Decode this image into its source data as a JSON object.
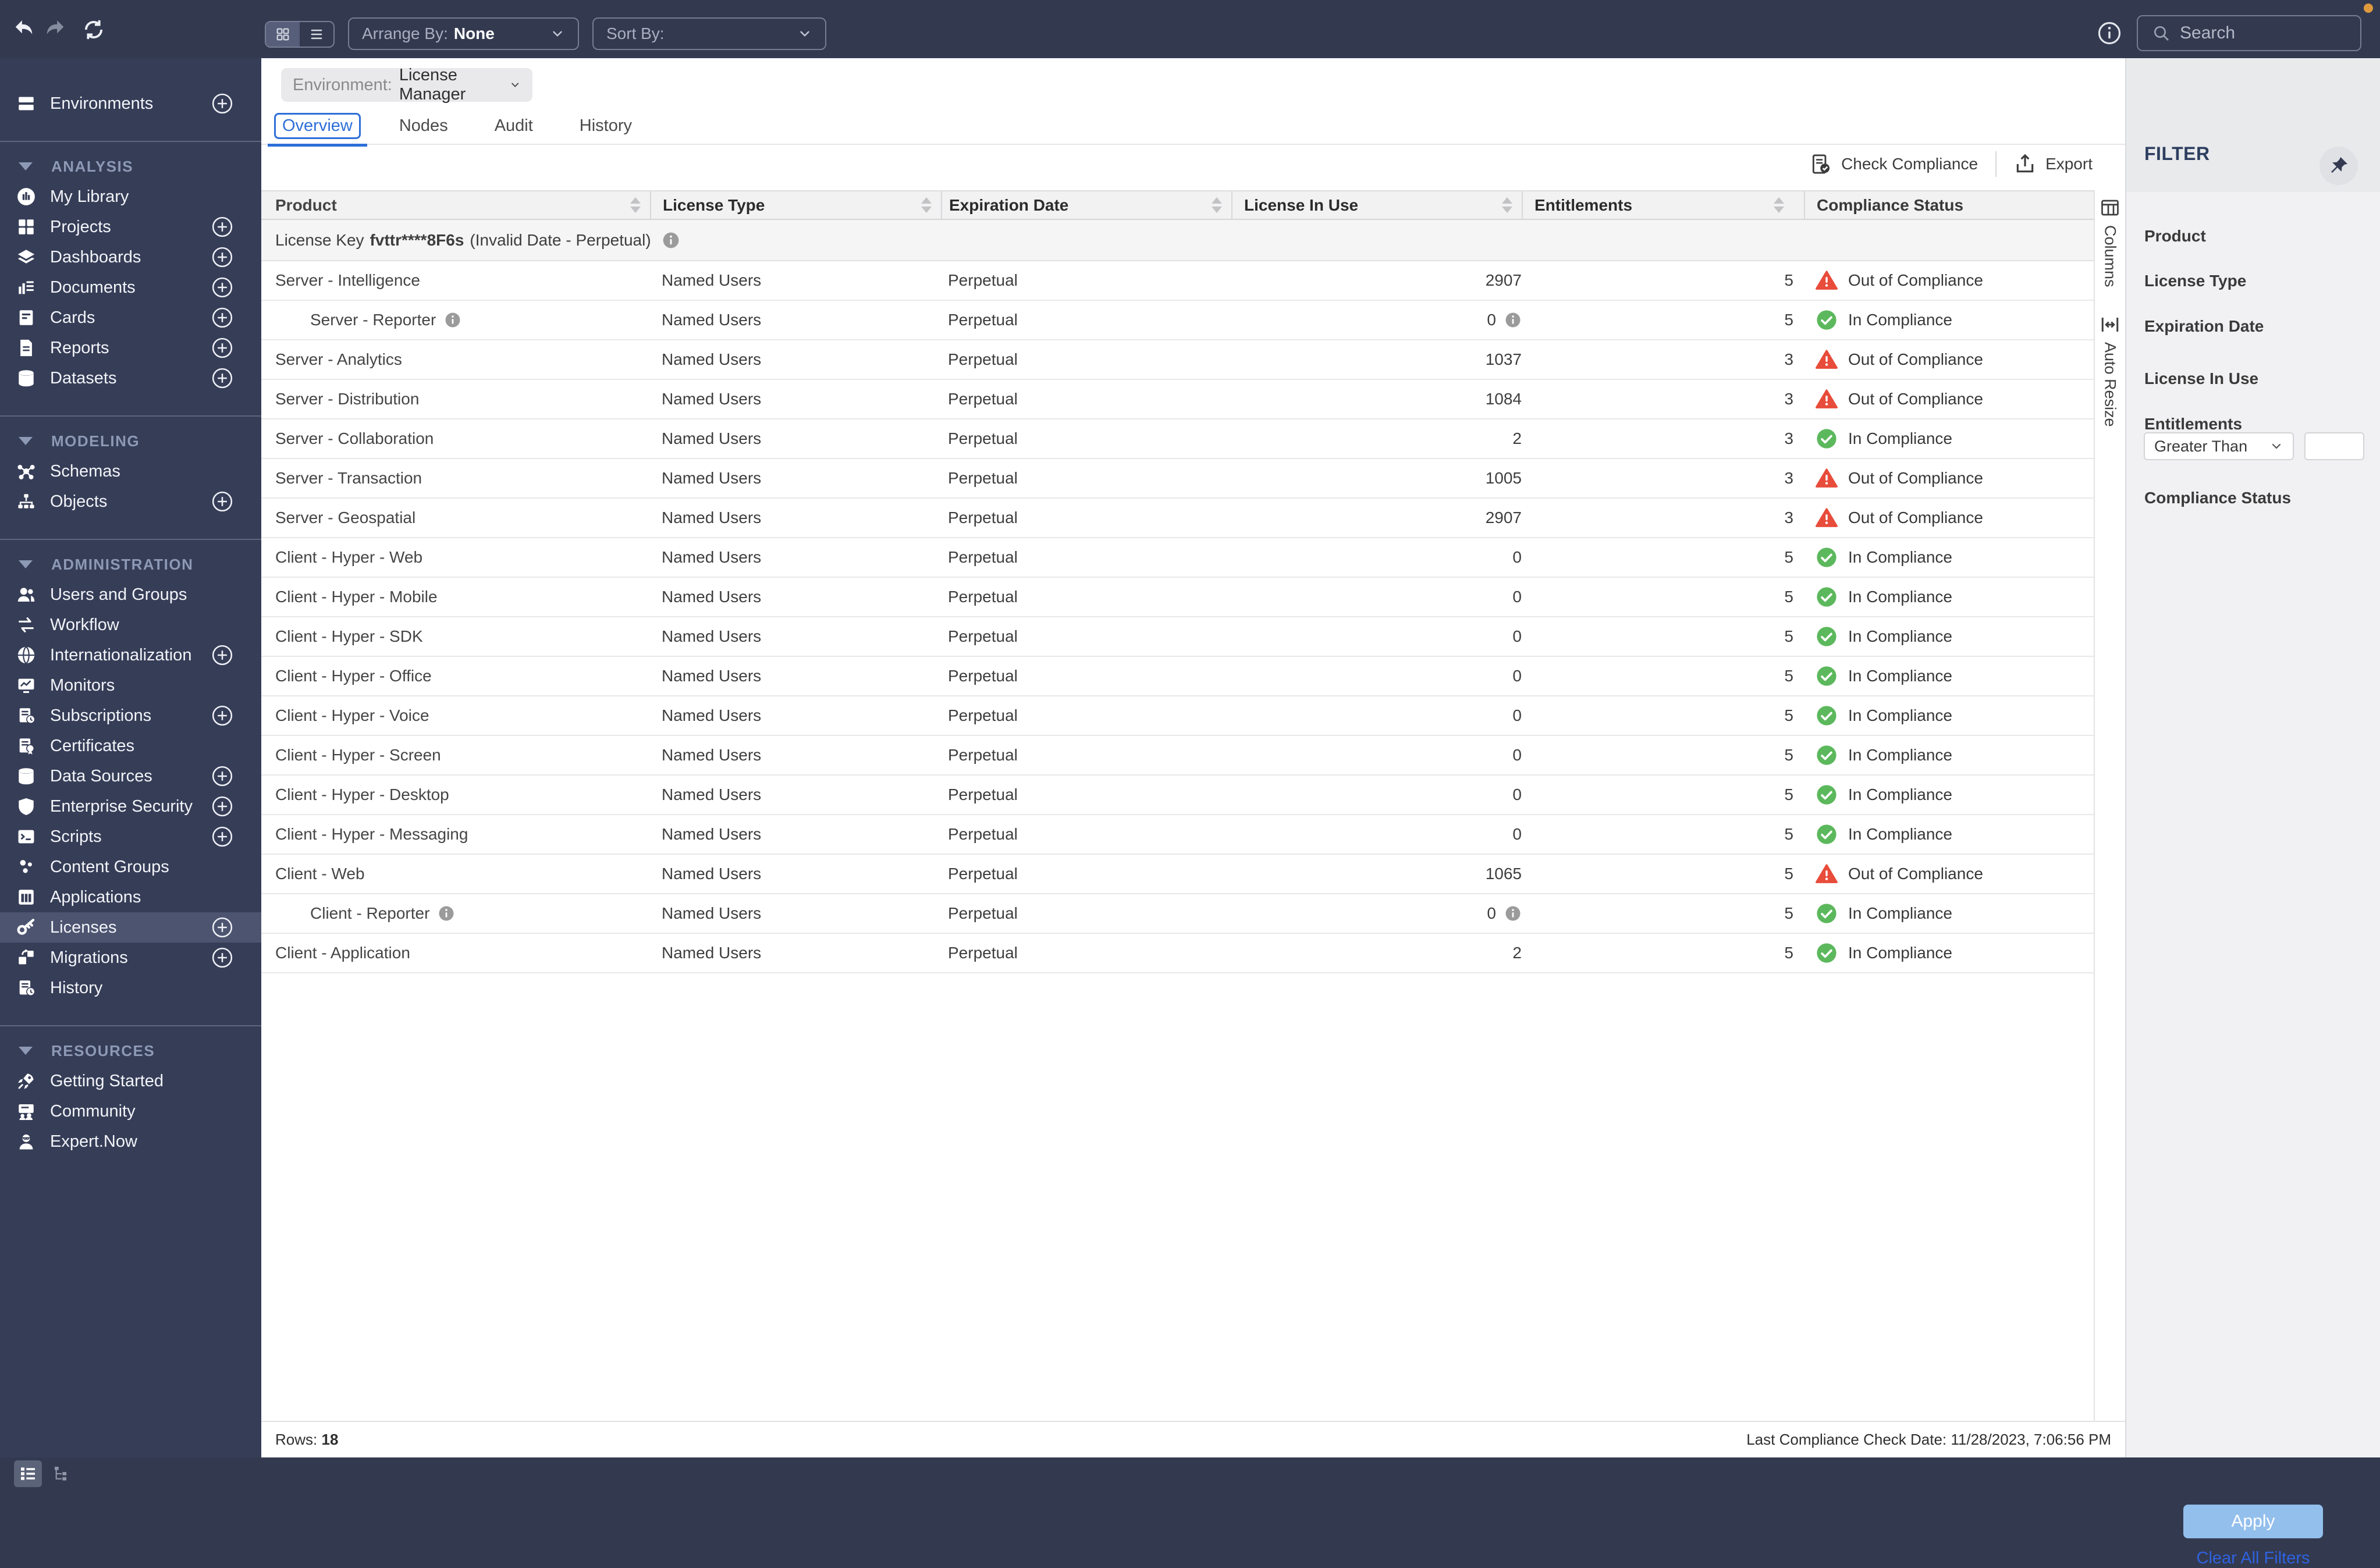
{
  "topbar": {
    "arrange_by_label": "Arrange By:",
    "arrange_by_value": "None",
    "sort_by_label": "Sort By:",
    "search_placeholder": "Search"
  },
  "sidebar": {
    "sections": [
      {
        "header": null,
        "items": [
          {
            "label": "Environments",
            "icon": "server-icon",
            "plus": true
          }
        ]
      },
      {
        "header": "ANALYSIS",
        "items": [
          {
            "label": "My Library",
            "icon": "library-icon",
            "plus": false
          },
          {
            "label": "Projects",
            "icon": "projects-icon",
            "plus": true
          },
          {
            "label": "Dashboards",
            "icon": "dashboards-icon",
            "plus": true
          },
          {
            "label": "Documents",
            "icon": "documents-icon",
            "plus": true
          },
          {
            "label": "Cards",
            "icon": "cards-icon",
            "plus": true
          },
          {
            "label": "Reports",
            "icon": "reports-icon",
            "plus": true
          },
          {
            "label": "Datasets",
            "icon": "datasets-icon",
            "plus": true
          }
        ]
      },
      {
        "header": "MODELING",
        "items": [
          {
            "label": "Schemas",
            "icon": "schemas-icon",
            "plus": false
          },
          {
            "label": "Objects",
            "icon": "objects-icon",
            "plus": true
          }
        ]
      },
      {
        "header": "ADMINISTRATION",
        "items": [
          {
            "label": "Users and Groups",
            "icon": "users-icon",
            "plus": false
          },
          {
            "label": "Workflow",
            "icon": "workflow-icon",
            "plus": false
          },
          {
            "label": "Internationalization",
            "icon": "globe-icon",
            "plus": true
          },
          {
            "label": "Monitors",
            "icon": "monitor-icon",
            "plus": false
          },
          {
            "label": "Subscriptions",
            "icon": "subscriptions-icon",
            "plus": true
          },
          {
            "label": "Certificates",
            "icon": "certificate-icon",
            "plus": false
          },
          {
            "label": "Data Sources",
            "icon": "database-icon",
            "plus": true
          },
          {
            "label": "Enterprise Security",
            "icon": "shield-icon",
            "plus": true
          },
          {
            "label": "Scripts",
            "icon": "terminal-icon",
            "plus": true
          },
          {
            "label": "Content Groups",
            "icon": "content-groups-icon",
            "plus": false
          },
          {
            "label": "Applications",
            "icon": "applications-icon",
            "plus": false
          },
          {
            "label": "Licenses",
            "icon": "key-icon",
            "plus": true,
            "selected": true
          },
          {
            "label": "Migrations",
            "icon": "migrations-icon",
            "plus": true
          },
          {
            "label": "History",
            "icon": "history-icon",
            "plus": false
          }
        ]
      },
      {
        "header": "RESOURCES",
        "items": [
          {
            "label": "Getting Started",
            "icon": "rocket-icon",
            "plus": false
          },
          {
            "label": "Community",
            "icon": "community-icon",
            "plus": false
          },
          {
            "label": "Expert.Now",
            "icon": "expert-icon",
            "plus": false
          }
        ]
      }
    ]
  },
  "main": {
    "environment_label": "Environment:",
    "environment_value": "License Manager",
    "tabs": [
      {
        "label": "Overview",
        "active": true
      },
      {
        "label": "Nodes",
        "active": false
      },
      {
        "label": "Audit",
        "active": false
      },
      {
        "label": "History",
        "active": false
      }
    ],
    "actions": {
      "check_compliance": "Check Compliance",
      "export": "Export"
    },
    "table": {
      "columns": [
        {
          "label": "Product",
          "sortable": true
        },
        {
          "label": "License Type",
          "sortable": true
        },
        {
          "label": "Expiration Date",
          "sortable": true
        },
        {
          "label": "License In Use",
          "sortable": true
        },
        {
          "label": "Entitlements",
          "sortable": true
        },
        {
          "label": "Compliance Status",
          "sortable": false
        }
      ],
      "license_key_row": {
        "prefix": "License Key",
        "key": "fvttr****8F6s",
        "suffix": "(Invalid Date - Perpetual)",
        "info": true
      },
      "rows": [
        {
          "product": "Server - Intelligence",
          "indent": false,
          "info": false,
          "license_type": "Named Users",
          "expiration": "Perpetual",
          "in_use": "2907",
          "in_use_info": false,
          "entitlements": "5",
          "status": "Out of Compliance",
          "status_type": "out"
        },
        {
          "product": "Server - Reporter",
          "indent": true,
          "info": true,
          "license_type": "Named Users",
          "expiration": "Perpetual",
          "in_use": "0",
          "in_use_info": true,
          "entitlements": "5",
          "status": "In Compliance",
          "status_type": "in"
        },
        {
          "product": "Server - Analytics",
          "indent": false,
          "info": false,
          "license_type": "Named Users",
          "expiration": "Perpetual",
          "in_use": "1037",
          "in_use_info": false,
          "entitlements": "3",
          "status": "Out of Compliance",
          "status_type": "out"
        },
        {
          "product": "Server - Distribution",
          "indent": false,
          "info": false,
          "license_type": "Named Users",
          "expiration": "Perpetual",
          "in_use": "1084",
          "in_use_info": false,
          "entitlements": "3",
          "status": "Out of Compliance",
          "status_type": "out"
        },
        {
          "product": "Server - Collaboration",
          "indent": false,
          "info": false,
          "license_type": "Named Users",
          "expiration": "Perpetual",
          "in_use": "2",
          "in_use_info": false,
          "entitlements": "3",
          "status": "In Compliance",
          "status_type": "in"
        },
        {
          "product": "Server - Transaction",
          "indent": false,
          "info": false,
          "license_type": "Named Users",
          "expiration": "Perpetual",
          "in_use": "1005",
          "in_use_info": false,
          "entitlements": "3",
          "status": "Out of Compliance",
          "status_type": "out"
        },
        {
          "product": "Server - Geospatial",
          "indent": false,
          "info": false,
          "license_type": "Named Users",
          "expiration": "Perpetual",
          "in_use": "2907",
          "in_use_info": false,
          "entitlements": "3",
          "status": "Out of Compliance",
          "status_type": "out"
        },
        {
          "product": "Client - Hyper - Web",
          "indent": false,
          "info": false,
          "license_type": "Named Users",
          "expiration": "Perpetual",
          "in_use": "0",
          "in_use_info": false,
          "entitlements": "5",
          "status": "In Compliance",
          "status_type": "in"
        },
        {
          "product": "Client - Hyper - Mobile",
          "indent": false,
          "info": false,
          "license_type": "Named Users",
          "expiration": "Perpetual",
          "in_use": "0",
          "in_use_info": false,
          "entitlements": "5",
          "status": "In Compliance",
          "status_type": "in"
        },
        {
          "product": "Client - Hyper - SDK",
          "indent": false,
          "info": false,
          "license_type": "Named Users",
          "expiration": "Perpetual",
          "in_use": "0",
          "in_use_info": false,
          "entitlements": "5",
          "status": "In Compliance",
          "status_type": "in"
        },
        {
          "product": "Client - Hyper - Office",
          "indent": false,
          "info": false,
          "license_type": "Named Users",
          "expiration": "Perpetual",
          "in_use": "0",
          "in_use_info": false,
          "entitlements": "5",
          "status": "In Compliance",
          "status_type": "in"
        },
        {
          "product": "Client - Hyper - Voice",
          "indent": false,
          "info": false,
          "license_type": "Named Users",
          "expiration": "Perpetual",
          "in_use": "0",
          "in_use_info": false,
          "entitlements": "5",
          "status": "In Compliance",
          "status_type": "in"
        },
        {
          "product": "Client - Hyper - Screen",
          "indent": false,
          "info": false,
          "license_type": "Named Users",
          "expiration": "Perpetual",
          "in_use": "0",
          "in_use_info": false,
          "entitlements": "5",
          "status": "In Compliance",
          "status_type": "in"
        },
        {
          "product": "Client - Hyper - Desktop",
          "indent": false,
          "info": false,
          "license_type": "Named Users",
          "expiration": "Perpetual",
          "in_use": "0",
          "in_use_info": false,
          "entitlements": "5",
          "status": "In Compliance",
          "status_type": "in"
        },
        {
          "product": "Client - Hyper - Messaging",
          "indent": false,
          "info": false,
          "license_type": "Named Users",
          "expiration": "Perpetual",
          "in_use": "0",
          "in_use_info": false,
          "entitlements": "5",
          "status": "In Compliance",
          "status_type": "in"
        },
        {
          "product": "Client - Web",
          "indent": false,
          "info": false,
          "license_type": "Named Users",
          "expiration": "Perpetual",
          "in_use": "1065",
          "in_use_info": false,
          "entitlements": "5",
          "status": "Out of Compliance",
          "status_type": "out"
        },
        {
          "product": "Client - Reporter",
          "indent": true,
          "info": true,
          "license_type": "Named Users",
          "expiration": "Perpetual",
          "in_use": "0",
          "in_use_info": true,
          "entitlements": "5",
          "status": "In Compliance",
          "status_type": "in"
        },
        {
          "product": "Client - Application",
          "indent": false,
          "info": false,
          "license_type": "Named Users",
          "expiration": "Perpetual",
          "in_use": "2",
          "in_use_info": false,
          "entitlements": "5",
          "status": "In Compliance",
          "status_type": "in"
        }
      ]
    },
    "side_strip": {
      "columns_label": "Columns",
      "auto_resize_label": "Auto Resize"
    },
    "footer": {
      "rows_label": "Rows:",
      "rows_value": "18",
      "last_check": "Last Compliance Check Date: 11/28/2023, 7:06:56 PM"
    }
  },
  "filter": {
    "title": "FILTER",
    "simple_fields": [
      "Product",
      "License Type",
      "Expiration Date",
      "License In Use"
    ],
    "entitlements": {
      "label": "Entitlements",
      "operator": "Greater Than",
      "value": ""
    },
    "compliance": {
      "label": "Compliance Status"
    },
    "apply_label": "Apply",
    "clear_label": "Clear All Filters"
  },
  "colors": {
    "accent_blue": "#2e6fd9",
    "link_blue": "#2f62e0",
    "error_red": "#e84c3a",
    "success_green": "#5cb85c",
    "apply_blue": "#93bfec",
    "sidebar_navy": "#363d57",
    "notification_orange": "#e09a3e"
  }
}
